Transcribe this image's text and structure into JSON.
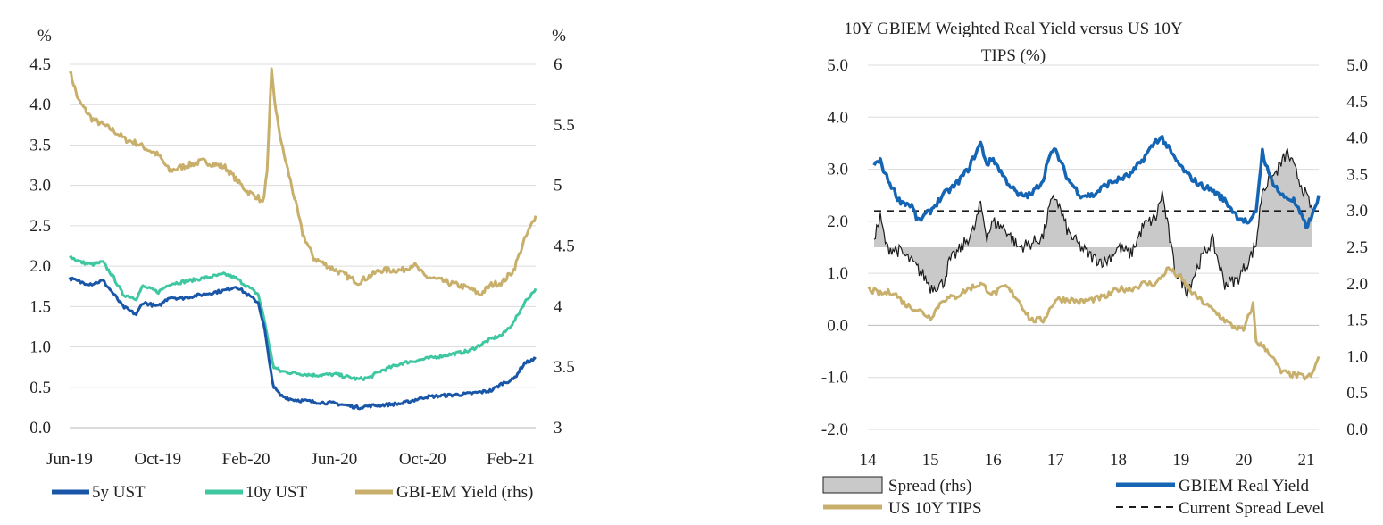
{
  "colors": {
    "ust5": "#1a56a8",
    "ust10": "#3fc7a2",
    "gold": "#c8b06c",
    "gbiem": "#1565b5",
    "spreadFill": "#c9c9c9",
    "spreadLine": "#1c1c1c",
    "grid": "#dcdcdc"
  },
  "chart_data": [
    {
      "type": "line",
      "title": "",
      "left_unit": "%",
      "right_unit": "%",
      "ylim": [
        0,
        4.5
      ],
      "y2lim": [
        3,
        6
      ],
      "y_ticks": [
        "0.0",
        "0.5",
        "1.0",
        "1.5",
        "2.0",
        "2.5",
        "3.0",
        "3.5",
        "4.0",
        "4.5"
      ],
      "y2_ticks": [
        "3",
        "3.5",
        "4",
        "4.5",
        "5",
        "5.5",
        "6"
      ],
      "x_ticks": [
        "Jun-19",
        "Oct-19",
        "Feb-20",
        "Jun-20",
        "Oct-20",
        "Feb-21"
      ],
      "xlim": [
        0,
        21
      ],
      "series": [
        {
          "name": "5y UST",
          "axis": "left",
          "color_key": "ust5",
          "points": [
            [
              0,
              1.85
            ],
            [
              0.5,
              1.8
            ],
            [
              1,
              1.78
            ],
            [
              1.5,
              1.82
            ],
            [
              2,
              1.65
            ],
            [
              2.4,
              1.5
            ],
            [
              3,
              1.4
            ],
            [
              3.3,
              1.55
            ],
            [
              4,
              1.5
            ],
            [
              4.5,
              1.62
            ],
            [
              5,
              1.6
            ],
            [
              6,
              1.65
            ],
            [
              7,
              1.7
            ],
            [
              7.5,
              1.75
            ],
            [
              8,
              1.65
            ],
            [
              8.5,
              1.55
            ],
            [
              8.8,
              1.2
            ],
            [
              9.0,
              0.8
            ],
            [
              9.2,
              0.5
            ],
            [
              9.5,
              0.4
            ],
            [
              10,
              0.35
            ],
            [
              11,
              0.32
            ],
            [
              12,
              0.3
            ],
            [
              13,
              0.25
            ],
            [
              13.5,
              0.27
            ],
            [
              14,
              0.28
            ],
            [
              15,
              0.3
            ],
            [
              16,
              0.38
            ],
            [
              17,
              0.4
            ],
            [
              18,
              0.42
            ],
            [
              19,
              0.46
            ],
            [
              19.5,
              0.55
            ],
            [
              20,
              0.6
            ],
            [
              20.5,
              0.8
            ],
            [
              21,
              0.85
            ]
          ]
        },
        {
          "name": "10y UST",
          "axis": "left",
          "color_key": "ust10",
          "points": [
            [
              0,
              2.12
            ],
            [
              0.5,
              2.05
            ],
            [
              1,
              2.02
            ],
            [
              1.5,
              2.05
            ],
            [
              2,
              1.85
            ],
            [
              2.4,
              1.65
            ],
            [
              3,
              1.6
            ],
            [
              3.3,
              1.75
            ],
            [
              4,
              1.68
            ],
            [
              4.5,
              1.78
            ],
            [
              5,
              1.8
            ],
            [
              6,
              1.85
            ],
            [
              7,
              1.9
            ],
            [
              7.5,
              1.85
            ],
            [
              8,
              1.75
            ],
            [
              8.5,
              1.65
            ],
            [
              8.8,
              1.3
            ],
            [
              9.0,
              1.0
            ],
            [
              9.2,
              0.75
            ],
            [
              9.5,
              0.7
            ],
            [
              10,
              0.68
            ],
            [
              11,
              0.65
            ],
            [
              12,
              0.66
            ],
            [
              13,
              0.6
            ],
            [
              13.5,
              0.62
            ],
            [
              14,
              0.7
            ],
            [
              15,
              0.8
            ],
            [
              16,
              0.85
            ],
            [
              17,
              0.9
            ],
            [
              18,
              0.95
            ],
            [
              19,
              1.1
            ],
            [
              19.5,
              1.15
            ],
            [
              20,
              1.3
            ],
            [
              20.5,
              1.55
            ],
            [
              21,
              1.72
            ]
          ]
        },
        {
          "name": "GBI-EM Yield (rhs)",
          "axis": "right",
          "color_key": "gold",
          "points": [
            [
              0,
              5.95
            ],
            [
              0.4,
              5.7
            ],
            [
              1,
              5.55
            ],
            [
              1.5,
              5.5
            ],
            [
              2,
              5.45
            ],
            [
              2.5,
              5.38
            ],
            [
              3,
              5.35
            ],
            [
              3.5,
              5.3
            ],
            [
              4,
              5.25
            ],
            [
              4.5,
              5.12
            ],
            [
              5,
              5.15
            ],
            [
              6,
              5.2
            ],
            [
              7,
              5.15
            ],
            [
              7.5,
              5.05
            ],
            [
              8,
              4.95
            ],
            [
              8.5,
              4.9
            ],
            [
              8.7,
              4.85
            ],
            [
              8.9,
              5.1
            ],
            [
              9.1,
              5.95
            ],
            [
              9.3,
              5.6
            ],
            [
              9.6,
              5.3
            ],
            [
              10,
              5.0
            ],
            [
              10.5,
              4.6
            ],
            [
              11,
              4.4
            ],
            [
              12,
              4.3
            ],
            [
              13,
              4.2
            ],
            [
              13.5,
              4.25
            ],
            [
              14,
              4.3
            ],
            [
              15,
              4.3
            ],
            [
              15.5,
              4.35
            ],
            [
              16,
              4.25
            ],
            [
              17,
              4.2
            ],
            [
              18,
              4.15
            ],
            [
              18.5,
              4.1
            ],
            [
              19,
              4.18
            ],
            [
              19.5,
              4.2
            ],
            [
              20,
              4.3
            ],
            [
              20.5,
              4.55
            ],
            [
              21,
              4.75
            ]
          ]
        }
      ]
    },
    {
      "type": "line",
      "title": "10Y GBIEM Weighted Real Yield versus US 10Y TIPS (%)",
      "title_line1": "10Y GBIEM Weighted Real Yield versus US 10Y",
      "title_line2": "TIPS (%)",
      "ylim": [
        -2.0,
        5.0
      ],
      "y2lim": [
        0.0,
        5.0
      ],
      "y_ticks": [
        "-2.0",
        "-1.0",
        "0.0",
        "1.0",
        "2.0",
        "3.0",
        "4.0",
        "5.0"
      ],
      "y2_ticks": [
        "0.0",
        "0.5",
        "1.0",
        "1.5",
        "2.0",
        "2.5",
        "3.0",
        "3.5",
        "4.0",
        "4.5",
        "5.0"
      ],
      "x_ticks": [
        "14",
        "15",
        "16",
        "17",
        "18",
        "19",
        "20",
        "21"
      ],
      "xlim": [
        14,
        21.2
      ],
      "series": [
        {
          "name": "Spread (rhs)",
          "kind": "area",
          "axis": "right",
          "baseline": 2.5,
          "color_key": "spreadFill",
          "points": [
            [
              14.1,
              2.65
            ],
            [
              14.2,
              2.9
            ],
            [
              14.3,
              2.5
            ],
            [
              14.5,
              2.45
            ],
            [
              14.7,
              2.3
            ],
            [
              14.9,
              2.1
            ],
            [
              15.0,
              1.95
            ],
            [
              15.2,
              2.0
            ],
            [
              15.3,
              2.3
            ],
            [
              15.5,
              2.5
            ],
            [
              15.7,
              2.75
            ],
            [
              15.8,
              3.1
            ],
            [
              15.9,
              2.65
            ],
            [
              16.0,
              2.85
            ],
            [
              16.2,
              2.75
            ],
            [
              16.4,
              2.5
            ],
            [
              16.6,
              2.55
            ],
            [
              16.8,
              2.65
            ],
            [
              16.9,
              3.05
            ],
            [
              17.0,
              3.2
            ],
            [
              17.2,
              2.7
            ],
            [
              17.4,
              2.5
            ],
            [
              17.6,
              2.35
            ],
            [
              17.8,
              2.3
            ],
            [
              18.0,
              2.5
            ],
            [
              18.2,
              2.4
            ],
            [
              18.4,
              2.8
            ],
            [
              18.6,
              2.9
            ],
            [
              18.7,
              3.25
            ],
            [
              18.9,
              2.2
            ],
            [
              19.1,
              1.9
            ],
            [
              19.3,
              2.3
            ],
            [
              19.5,
              2.6
            ],
            [
              19.7,
              2.0
            ],
            [
              19.9,
              2.05
            ],
            [
              20.1,
              2.35
            ],
            [
              20.2,
              2.55
            ],
            [
              20.3,
              3.3
            ],
            [
              20.5,
              3.5
            ],
            [
              20.7,
              3.8
            ],
            [
              20.9,
              3.4
            ],
            [
              21.1,
              3.0
            ]
          ]
        },
        {
          "name": "GBIEM Real Yield",
          "axis": "left",
          "color_key": "gbiem",
          "points": [
            [
              14.1,
              3.1
            ],
            [
              14.2,
              3.15
            ],
            [
              14.3,
              2.85
            ],
            [
              14.5,
              2.4
            ],
            [
              14.7,
              2.3
            ],
            [
              14.8,
              2.0
            ],
            [
              15.0,
              2.2
            ],
            [
              15.2,
              2.5
            ],
            [
              15.4,
              2.7
            ],
            [
              15.6,
              3.0
            ],
            [
              15.8,
              3.5
            ],
            [
              15.9,
              3.1
            ],
            [
              16.0,
              3.2
            ],
            [
              16.2,
              2.8
            ],
            [
              16.4,
              2.5
            ],
            [
              16.6,
              2.5
            ],
            [
              16.8,
              2.8
            ],
            [
              16.9,
              3.3
            ],
            [
              17.0,
              3.35
            ],
            [
              17.2,
              2.8
            ],
            [
              17.4,
              2.5
            ],
            [
              17.6,
              2.5
            ],
            [
              17.8,
              2.7
            ],
            [
              18.0,
              2.8
            ],
            [
              18.2,
              2.9
            ],
            [
              18.4,
              3.2
            ],
            [
              18.6,
              3.55
            ],
            [
              18.7,
              3.6
            ],
            [
              18.9,
              3.2
            ],
            [
              19.1,
              2.9
            ],
            [
              19.3,
              2.7
            ],
            [
              19.5,
              2.6
            ],
            [
              19.7,
              2.4
            ],
            [
              19.9,
              2.1
            ],
            [
              20.1,
              1.95
            ],
            [
              20.2,
              2.2
            ],
            [
              20.3,
              3.35
            ],
            [
              20.4,
              2.9
            ],
            [
              20.6,
              2.5
            ],
            [
              20.8,
              2.4
            ],
            [
              21.0,
              1.9
            ],
            [
              21.1,
              2.1
            ],
            [
              21.2,
              2.5
            ]
          ]
        },
        {
          "name": "US 10Y TIPS",
          "axis": "left",
          "color_key": "gold",
          "points": [
            [
              14.0,
              0.7
            ],
            [
              14.2,
              0.6
            ],
            [
              14.4,
              0.65
            ],
            [
              14.6,
              0.4
            ],
            [
              14.8,
              0.3
            ],
            [
              15.0,
              0.15
            ],
            [
              15.2,
              0.5
            ],
            [
              15.4,
              0.55
            ],
            [
              15.6,
              0.7
            ],
            [
              15.8,
              0.8
            ],
            [
              16.0,
              0.6
            ],
            [
              16.2,
              0.75
            ],
            [
              16.4,
              0.5
            ],
            [
              16.6,
              0.1
            ],
            [
              16.8,
              0.1
            ],
            [
              17.0,
              0.5
            ],
            [
              17.2,
              0.5
            ],
            [
              17.4,
              0.45
            ],
            [
              17.6,
              0.5
            ],
            [
              17.8,
              0.55
            ],
            [
              18.0,
              0.7
            ],
            [
              18.2,
              0.7
            ],
            [
              18.4,
              0.8
            ],
            [
              18.6,
              0.8
            ],
            [
              18.8,
              1.1
            ],
            [
              19.0,
              0.9
            ],
            [
              19.2,
              0.6
            ],
            [
              19.4,
              0.4
            ],
            [
              19.6,
              0.2
            ],
            [
              19.8,
              0.0
            ],
            [
              20.0,
              -0.1
            ],
            [
              20.15,
              0.4
            ],
            [
              20.2,
              -0.3
            ],
            [
              20.4,
              -0.5
            ],
            [
              20.6,
              -0.9
            ],
            [
              20.8,
              -0.95
            ],
            [
              21.0,
              -1.0
            ],
            [
              21.1,
              -0.95
            ],
            [
              21.2,
              -0.6
            ]
          ]
        },
        {
          "name": "Current Spread Level",
          "kind": "dashed",
          "axis": "left",
          "value": 2.2,
          "color_key": "spreadLine"
        }
      ],
      "legend": [
        "Spread (rhs)",
        "GBIEM Real Yield",
        "US 10Y TIPS",
        "Current Spread Level"
      ]
    }
  ]
}
